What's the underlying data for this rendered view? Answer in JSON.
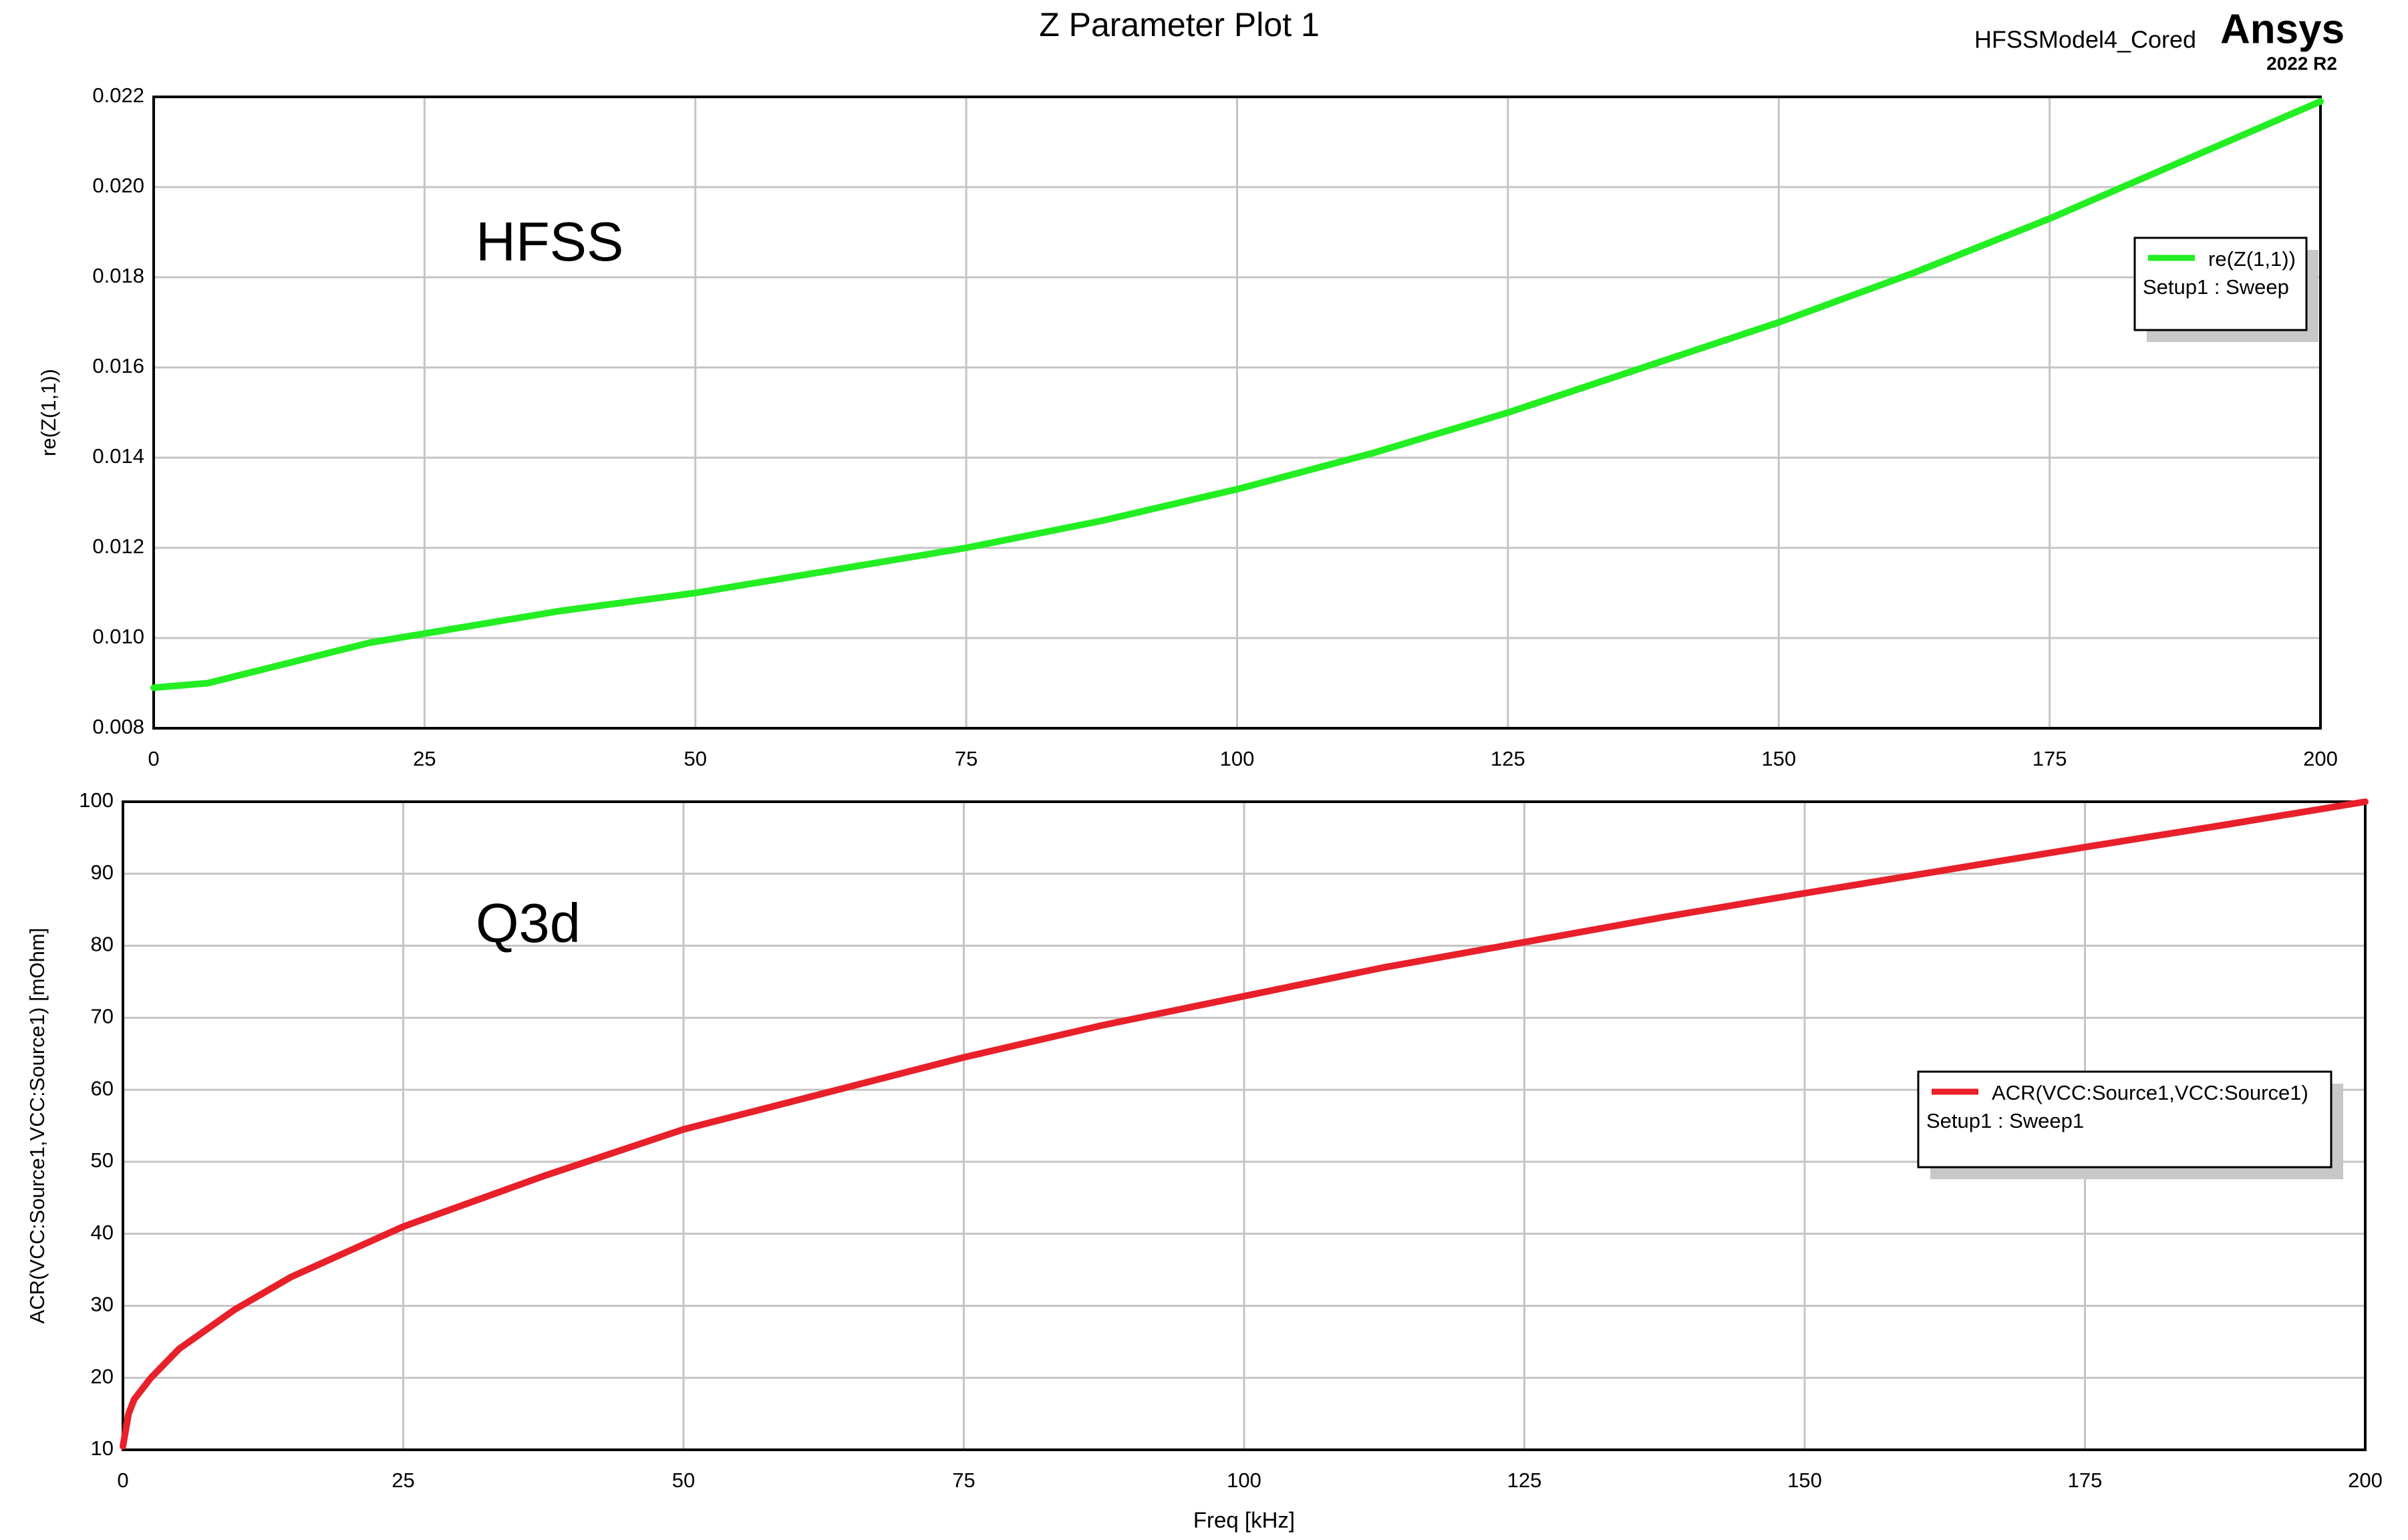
{
  "chart_data": [
    {
      "type": "line",
      "title": "Z Parameter Plot 1",
      "annotations": [
        "HFSSModel4_Cored",
        "Ansys",
        "2022 R2",
        "HFSS"
      ],
      "ylabel": "re(Z(1,1))",
      "xlim": [
        0,
        200
      ],
      "xticks": [
        0,
        25,
        50,
        75,
        100,
        125,
        150,
        175,
        200
      ],
      "ylim": [
        0.008,
        0.022
      ],
      "yticks": [
        0.008,
        {
          "value": 0.01,
          "label": "0.010"
        },
        0.012,
        0.014,
        0.016,
        0.018,
        {
          "value": 0.02,
          "label": "0.020"
        },
        0.022
      ],
      "grid": true,
      "legend": "upper right",
      "series": [
        {
          "name": "re(Z(1,1))",
          "solution": "Setup1 : Sweep",
          "color": "#22ee22",
          "x": [
            0,
            5,
            10,
            15,
            20,
            25,
            37.5,
            50,
            62.5,
            75,
            87.5,
            100,
            112.5,
            125,
            137.5,
            150,
            162.5,
            175,
            187.5,
            200
          ],
          "values": [
            0.0089,
            0.009,
            0.0093,
            0.0096,
            0.0099,
            0.0101,
            0.0106,
            0.011,
            0.0115,
            0.012,
            0.0126,
            0.0133,
            0.0141,
            0.015,
            0.016,
            0.017,
            0.0181,
            0.0193,
            0.0206,
            0.0219
          ]
        }
      ]
    },
    {
      "type": "line",
      "annotations": [
        "Q3d"
      ],
      "xlabel": "Freq [kHz]",
      "ylabel": "ACR(VCC:Source1,VCC:Source1) [mOhm]",
      "xlim": [
        0,
        200
      ],
      "xticks": [
        0,
        25,
        50,
        75,
        100,
        125,
        150,
        175,
        200
      ],
      "ylim": [
        10,
        100
      ],
      "yticks": [
        10,
        20,
        30,
        40,
        50,
        60,
        70,
        80,
        90,
        100
      ],
      "grid": true,
      "legend": "right",
      "series": [
        {
          "name": "ACR(VCC:Source1,VCC:Source1)",
          "solution": "Setup1 : Sweep1",
          "color": "#e8202a",
          "x": [
            0,
            0.5,
            1,
            2.5,
            5,
            10,
            15,
            25,
            37.5,
            50,
            62.5,
            75,
            87.5,
            100,
            112.5,
            125,
            137.5,
            150,
            162.5,
            175,
            187.5,
            200
          ],
          "values": [
            10.5,
            15,
            17,
            20,
            24,
            29.5,
            34,
            41,
            48,
            54.5,
            59.5,
            64.5,
            69,
            73,
            77,
            80.5,
            84,
            87.3,
            90.5,
            93.7,
            96.8,
            100
          ]
        }
      ]
    }
  ]
}
